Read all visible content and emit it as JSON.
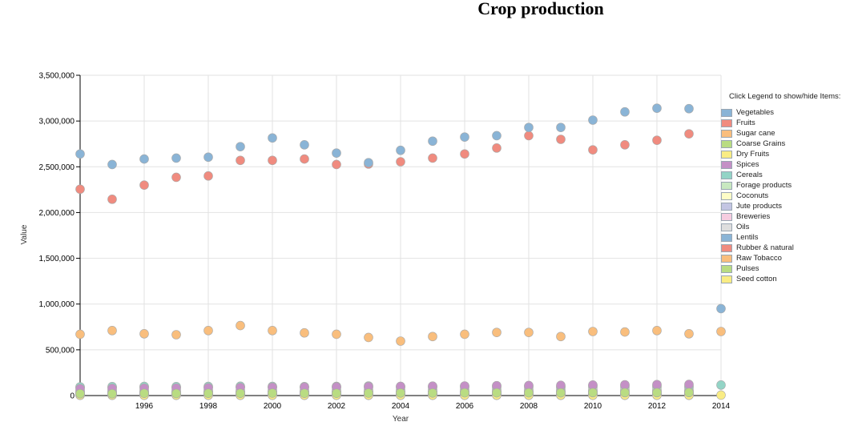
{
  "chart_data": {
    "type": "scatter",
    "title": "Crop production",
    "xlabel": "Year",
    "ylabel": "Value",
    "xlim": [
      1994,
      2014
    ],
    "ylim": [
      0,
      3500000
    ],
    "x_ticks": [
      "1996",
      "1998",
      "2000",
      "2002",
      "2004",
      "2006",
      "2008",
      "2010",
      "2012",
      "2014"
    ],
    "y_ticks": [
      "0",
      "500,000",
      "1,000,000",
      "1,500,000",
      "2,000,000",
      "2,500,000",
      "3,000,000",
      "3,500,000"
    ],
    "grid": true,
    "legend_position": "right",
    "legend_title": "Click Legend to show/hide Items:",
    "x": [
      1994,
      1995,
      1996,
      1997,
      1998,
      1999,
      2000,
      2001,
      2002,
      2003,
      2004,
      2005,
      2006,
      2007,
      2008,
      2009,
      2010,
      2011,
      2012,
      2013,
      2014
    ],
    "series": [
      {
        "name": "Vegetables",
        "color": "#8ab4d6",
        "values": [
          2640000,
          2525000,
          2585000,
          2595000,
          2605000,
          2720000,
          2815000,
          2740000,
          2650000,
          2545000,
          2680000,
          2780000,
          2825000,
          2840000,
          2930000,
          2930000,
          3010000,
          3100000,
          3140000,
          3135000,
          950000
        ]
      },
      {
        "name": "Fruits",
        "color": "#f08b7f",
        "values": [
          2255000,
          2145000,
          2300000,
          2385000,
          2400000,
          2570000,
          2570000,
          2585000,
          2525000,
          2530000,
          2555000,
          2595000,
          2640000,
          2705000,
          2840000,
          2800000,
          2685000,
          2740000,
          2790000,
          2860000,
          null
        ]
      },
      {
        "name": "Sugar cane",
        "color": "#f9be7d",
        "values": [
          670000,
          710000,
          675000,
          665000,
          710000,
          765000,
          710000,
          685000,
          670000,
          635000,
          595000,
          645000,
          670000,
          690000,
          690000,
          645000,
          700000,
          695000,
          710000,
          675000,
          700000
        ]
      },
      {
        "name": "Coarse Grains",
        "color": "#b9dc82",
        "values": [
          20000,
          20000,
          25000,
          22000,
          25000,
          25000,
          27000,
          25000,
          25000,
          27000,
          28000,
          28000,
          30000,
          30000,
          30000,
          30000,
          32000,
          32000,
          32000,
          33000,
          null
        ]
      },
      {
        "name": "Dry Fruits",
        "color": "#f9ec84",
        "values": [
          5000,
          5000,
          5000,
          5000,
          5000,
          5000,
          5000,
          5000,
          5000,
          5000,
          5000,
          5000,
          5000,
          5000,
          5000,
          5000,
          5000,
          5000,
          5000,
          5000,
          5000
        ]
      },
      {
        "name": "Spices",
        "color": "#c490c6",
        "values": [
          75000,
          78000,
          80000,
          82000,
          85000,
          88000,
          90000,
          92000,
          95000,
          98000,
          100000,
          103000,
          105000,
          108000,
          110000,
          112000,
          115000,
          118000,
          120000,
          122000,
          null
        ]
      },
      {
        "name": "Cereals",
        "color": "#93d4c6",
        "values": [
          95000,
          98000,
          100000,
          98000,
          100000,
          102000,
          100000,
          98000,
          100000,
          105000,
          100000,
          100000,
          102000,
          105000,
          105000,
          100000,
          110000,
          110000,
          110000,
          105000,
          115000
        ]
      },
      {
        "name": "Forage products",
        "color": "#c8e8c0",
        "values": [
          88000,
          90000,
          92000,
          90000,
          90000,
          92000,
          90000,
          88000,
          88000,
          90000,
          90000,
          90000,
          90000,
          90000,
          90000,
          88000,
          92000,
          92000,
          92000,
          90000,
          null
        ]
      },
      {
        "name": "Coconuts",
        "color": "#fdfdc7",
        "values": [
          55000,
          56000,
          56000,
          57000,
          57000,
          58000,
          58000,
          58000,
          59000,
          59000,
          60000,
          60000,
          60000,
          61000,
          61000,
          61000,
          62000,
          62000,
          62000,
          63000,
          null
        ]
      },
      {
        "name": "Jute products",
        "color": "#c3c5e3",
        "values": [
          35000,
          35000,
          36000,
          36000,
          37000,
          37000,
          38000,
          38000,
          38000,
          39000,
          39000,
          40000,
          40000,
          40000,
          41000,
          41000,
          41000,
          42000,
          42000,
          42000,
          null
        ]
      },
      {
        "name": "Breweries",
        "color": "#f6cde0",
        "values": [
          30000,
          30000,
          31000,
          31000,
          31000,
          32000,
          32000,
          32000,
          33000,
          33000,
          33000,
          34000,
          34000,
          34000,
          35000,
          35000,
          35000,
          36000,
          36000,
          36000,
          null
        ]
      },
      {
        "name": "Oils",
        "color": "#dedede",
        "values": [
          45000,
          45000,
          46000,
          46000,
          47000,
          47000,
          48000,
          48000,
          48000,
          49000,
          49000,
          50000,
          50000,
          50000,
          51000,
          51000,
          51000,
          52000,
          52000,
          52000,
          null
        ]
      },
      {
        "name": "Lentils",
        "color": "#8ab4d6",
        "values": [
          15000,
          15000,
          15000,
          15000,
          15000,
          15000,
          15000,
          15000,
          15000,
          15000,
          15000,
          15000,
          15000,
          15000,
          15000,
          15000,
          15000,
          15000,
          15000,
          15000,
          null
        ]
      },
      {
        "name": "Rubber & natural",
        "color": "#f08b7f",
        "values": [
          10000,
          10000,
          10000,
          11000,
          11000,
          11000,
          12000,
          12000,
          12000,
          12000,
          13000,
          13000,
          13000,
          13000,
          14000,
          14000,
          14000,
          15000,
          15000,
          15000,
          null
        ]
      },
      {
        "name": "Raw Tobacco",
        "color": "#f9be7d",
        "values": [
          8000,
          8000,
          8000,
          8000,
          8000,
          8000,
          8000,
          8000,
          8000,
          8000,
          8000,
          8000,
          8000,
          8000,
          8000,
          8000,
          8000,
          8000,
          8000,
          8000,
          null
        ]
      },
      {
        "name": "Pulses",
        "color": "#b9dc82",
        "values": [
          12000,
          12000,
          12000,
          12000,
          12000,
          12000,
          12000,
          12000,
          12000,
          12000,
          12000,
          12000,
          12000,
          12000,
          12000,
          12000,
          12000,
          12000,
          12000,
          12000,
          null
        ]
      },
      {
        "name": "Seed cotton",
        "color": "#f9ec84",
        "values": [
          3000,
          3000,
          3000,
          3000,
          3000,
          3000,
          3000,
          3000,
          3000,
          3000,
          3000,
          3000,
          3000,
          3000,
          3000,
          3000,
          3000,
          3000,
          3000,
          3000,
          null
        ]
      }
    ]
  }
}
